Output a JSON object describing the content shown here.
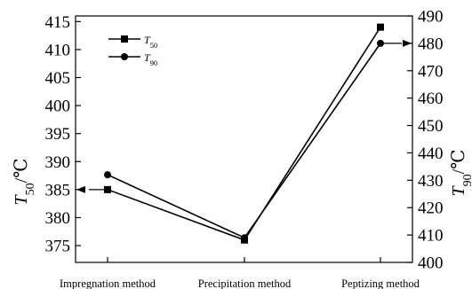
{
  "chart_data": {
    "type": "line",
    "categories": [
      "Impregnation method",
      "Precipitation method",
      "Peptizing method"
    ],
    "series": [
      {
        "name": "T50",
        "axis": "left",
        "marker": "square",
        "values": [
          385,
          376,
          414
        ]
      },
      {
        "name": "T90",
        "axis": "right",
        "marker": "circle",
        "values": [
          432,
          409,
          480
        ]
      }
    ],
    "y_left": {
      "label": "T50/℃",
      "label_main": "T",
      "label_sub": "50",
      "label_unit": "/℃",
      "ylim": [
        372,
        416
      ],
      "ticks": [
        375,
        380,
        385,
        390,
        395,
        400,
        405,
        410,
        415
      ]
    },
    "y_right": {
      "label": "T90/℃",
      "label_main": "T",
      "label_sub": "90",
      "label_unit": "/℃",
      "ylim": [
        400,
        490
      ],
      "ticks": [
        400,
        410,
        420,
        430,
        440,
        450,
        460,
        470,
        480,
        490
      ]
    },
    "legend": {
      "position": "top-left",
      "entries": [
        {
          "main": "T",
          "sub": "50",
          "marker": "square"
        },
        {
          "main": "T",
          "sub": "90",
          "marker": "circle"
        }
      ]
    },
    "annotations": [
      {
        "type": "arrow",
        "points_to": "left-axis",
        "at_series": "T50"
      },
      {
        "type": "arrow",
        "points_to": "right-axis",
        "at_series": "T90"
      }
    ],
    "grid": false,
    "colors": {
      "line": "#000000",
      "background": "#ffffff"
    }
  }
}
